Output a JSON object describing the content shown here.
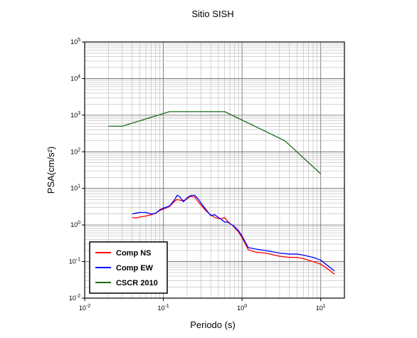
{
  "chart_data": {
    "type": "line",
    "title": "Sitio SISH",
    "xlabel": "Periodo (s)",
    "ylabel": "PSA(cm/s²)",
    "xscale": "log",
    "yscale": "log",
    "xlim": [
      0.01,
      20
    ],
    "ylim": [
      0.01,
      100000
    ],
    "x_ticks": [
      {
        "value": 0.01,
        "base": "10",
        "exp": "-2"
      },
      {
        "value": 0.1,
        "base": "10",
        "exp": "-1"
      },
      {
        "value": 1,
        "base": "10",
        "exp": "0"
      },
      {
        "value": 10,
        "base": "10",
        "exp": "1"
      }
    ],
    "y_ticks": [
      {
        "value": 0.01,
        "base": "10",
        "exp": "-2"
      },
      {
        "value": 0.1,
        "base": "10",
        "exp": "-1"
      },
      {
        "value": 1,
        "base": "10",
        "exp": "0"
      },
      {
        "value": 10,
        "base": "10",
        "exp": "1"
      },
      {
        "value": 100,
        "base": "10",
        "exp": "2"
      },
      {
        "value": 1000,
        "base": "10",
        "exp": "3"
      },
      {
        "value": 10000,
        "base": "10",
        "exp": "4"
      },
      {
        "value": 100000,
        "base": "10",
        "exp": "5"
      }
    ],
    "grid": true,
    "legend_position": "bottom-left",
    "series": [
      {
        "name": "Comp NS",
        "color": "#ff0000",
        "x": [
          0.04,
          0.045,
          0.05,
          0.06,
          0.07,
          0.08,
          0.09,
          0.1,
          0.12,
          0.14,
          0.15,
          0.17,
          0.19,
          0.2,
          0.22,
          0.25,
          0.28,
          0.3,
          0.35,
          0.4,
          0.45,
          0.5,
          0.55,
          0.6,
          0.65,
          0.7,
          0.75,
          0.8,
          0.9,
          1.0,
          1.2,
          1.5,
          2,
          3,
          4,
          5,
          6,
          8,
          10,
          12,
          15
        ],
        "values": [
          1.6,
          1.55,
          1.65,
          1.75,
          1.9,
          2.1,
          2.5,
          2.7,
          3.2,
          4.5,
          5.0,
          4.6,
          4.8,
          5.2,
          6.0,
          5.8,
          4.2,
          3.5,
          2.4,
          1.9,
          1.6,
          1.5,
          1.5,
          1.6,
          1.3,
          1.1,
          1.0,
          0.85,
          0.65,
          0.45,
          0.21,
          0.18,
          0.17,
          0.14,
          0.13,
          0.13,
          0.12,
          0.1,
          0.085,
          0.065,
          0.045
        ]
      },
      {
        "name": "Comp EW",
        "color": "#0000ff",
        "x": [
          0.04,
          0.045,
          0.05,
          0.06,
          0.07,
          0.08,
          0.09,
          0.1,
          0.12,
          0.14,
          0.15,
          0.16,
          0.18,
          0.2,
          0.22,
          0.25,
          0.28,
          0.3,
          0.35,
          0.4,
          0.45,
          0.5,
          0.55,
          0.6,
          0.65,
          0.7,
          0.75,
          0.8,
          0.9,
          1.0,
          1.2,
          1.5,
          2,
          3,
          4,
          5,
          6,
          8,
          10,
          12,
          15
        ],
        "values": [
          2.0,
          2.1,
          2.2,
          2.2,
          2.0,
          2.1,
          2.6,
          2.9,
          3.3,
          5.0,
          6.5,
          6.0,
          4.3,
          5.5,
          6.3,
          6.5,
          5.0,
          4.0,
          2.6,
          1.8,
          1.9,
          1.6,
          1.4,
          1.2,
          1.2,
          1.1,
          1.0,
          0.9,
          0.7,
          0.5,
          0.24,
          0.22,
          0.2,
          0.17,
          0.16,
          0.16,
          0.15,
          0.13,
          0.11,
          0.08,
          0.055
        ]
      },
      {
        "name": "CSCR 2010",
        "color": "#1a6b1a",
        "x": [
          0.02,
          0.03,
          0.12,
          0.6,
          3.5,
          10
        ],
        "values": [
          500,
          500,
          1250,
          1250,
          200,
          25
        ]
      }
    ]
  }
}
